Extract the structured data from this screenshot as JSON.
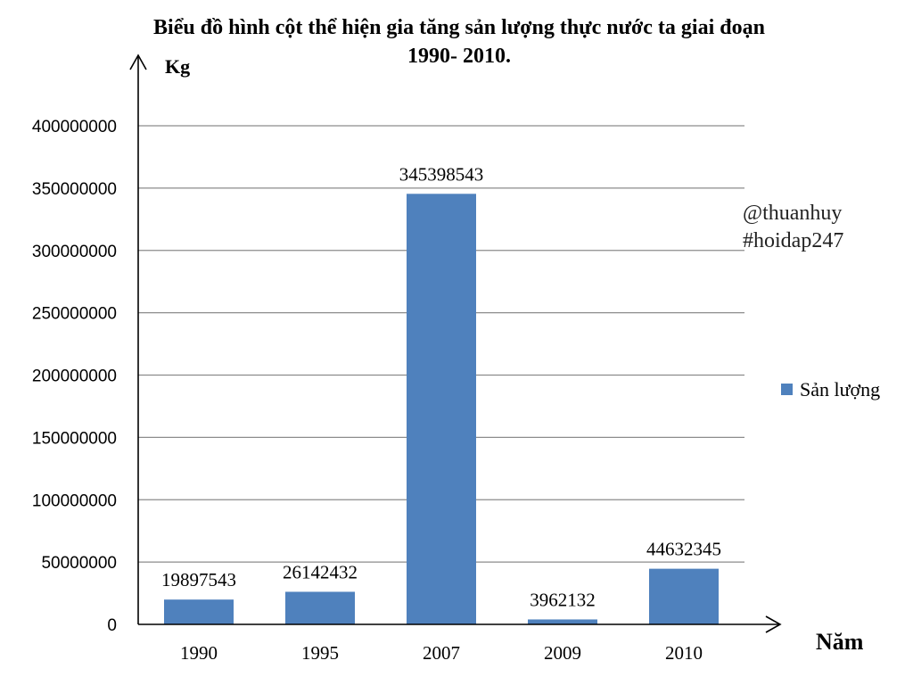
{
  "chart_data": {
    "type": "bar",
    "title_line1": "Biểu đồ hình cột thể hiện gia tăng sản lượng thực nước ta giai đoạn",
    "title_line2": "1990- 2010.",
    "ylabel": "Kg",
    "xlabel": "Năm",
    "categories": [
      "1990",
      "1995",
      "2007",
      "2009",
      "2010"
    ],
    "series": [
      {
        "name": "Sản lượng",
        "values": [
          19897543,
          26142432,
          345398543,
          3962132,
          44632345
        ],
        "color": "#4f81bd"
      }
    ],
    "data_labels": [
      "19897543",
      "26142432",
      "345398543",
      "3962132",
      "44632345"
    ],
    "ylim": [
      0,
      400000000
    ],
    "yticks": [
      0,
      50000000,
      100000000,
      150000000,
      200000000,
      250000000,
      300000000,
      350000000,
      400000000
    ],
    "ytick_labels": [
      "0",
      "50000000",
      "100000000",
      "150000000",
      "200000000",
      "250000000",
      "300000000",
      "350000000",
      "400000000"
    ],
    "grid": true,
    "legend_position": "right",
    "watermark_line1": "@thuanhuy",
    "watermark_line2": "#hoidap247"
  }
}
